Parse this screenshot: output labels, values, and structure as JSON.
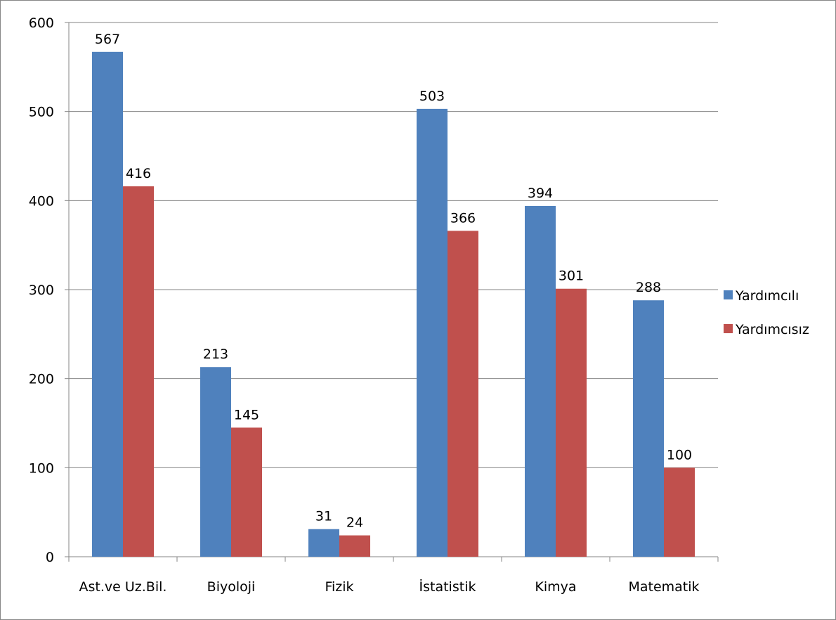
{
  "chart_data": {
    "type": "bar",
    "title": "",
    "xlabel": "",
    "ylabel": "",
    "categories": [
      "Ast.ve Uz.Bil.",
      "Biyoloji",
      "Fizik",
      "İstatistik",
      "Kimya",
      "Matematik"
    ],
    "series": [
      {
        "name": "Yardımcılı",
        "color": "#4F81BD",
        "values": [
          567,
          213,
          31,
          503,
          394,
          288
        ]
      },
      {
        "name": "Yardımcısız",
        "color": "#C0504D",
        "values": [
          416,
          145,
          24,
          366,
          301,
          100
        ]
      }
    ],
    "ylim": [
      0,
      600
    ],
    "yticks": [
      0,
      100,
      200,
      300,
      400,
      500,
      600
    ],
    "grid": true,
    "legend_position": "right",
    "data_labels": true
  }
}
